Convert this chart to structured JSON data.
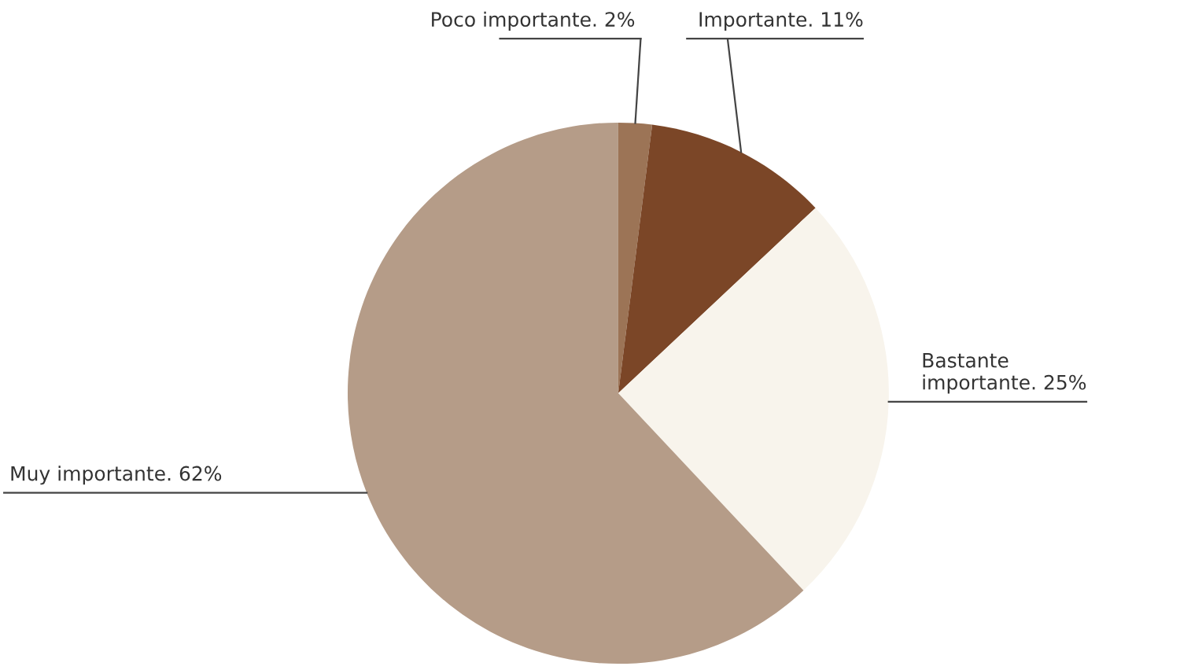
{
  "chart_data": {
    "type": "pie",
    "categories": [
      "Poco importante.",
      "Importante.",
      "Bastante\nimportante.",
      "Muy importante."
    ],
    "values": [
      2,
      11,
      25,
      62
    ],
    "value_labels": [
      "2%",
      "11%",
      "25%",
      "62%"
    ],
    "colors": [
      "#9c7456",
      "#7b4627",
      "#f8f4ec",
      "#b59c88"
    ]
  }
}
